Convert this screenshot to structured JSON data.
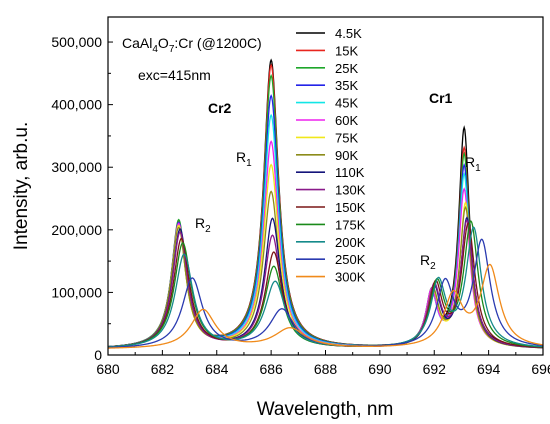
{
  "chart_data": {
    "type": "line",
    "xlabel": "Wavelength, nm",
    "ylabel": "Intensity, arb.u.",
    "xlim": [
      680,
      696
    ],
    "ylim": [
      0,
      540000
    ],
    "x_ticks": [
      680,
      682,
      684,
      686,
      688,
      690,
      692,
      694,
      696
    ],
    "x_tick_labels": [
      "680",
      "682",
      "684",
      "686",
      "688",
      "690",
      "692",
      "694",
      "696"
    ],
    "y_ticks": [
      0,
      100000,
      200000,
      300000,
      400000,
      500000
    ],
    "y_tick_labels": [
      "0",
      "100,000",
      "200,000",
      "300,000",
      "400,000",
      "500,000"
    ],
    "grid": false,
    "legend_position": "top-center",
    "baseline": 9000,
    "series": [
      {
        "name": "4.5K",
        "color": "#000000",
        "peaks": [
          [
            682.6,
            195000,
            0.32
          ],
          [
            686.0,
            460000,
            0.33
          ],
          [
            691.9,
            80000,
            0.25
          ],
          [
            693.1,
            350000,
            0.24
          ]
        ]
      },
      {
        "name": "15K",
        "color": "#e8251e",
        "peaks": [
          [
            682.6,
            200000,
            0.32
          ],
          [
            686.0,
            452000,
            0.33
          ],
          [
            691.9,
            82000,
            0.25
          ],
          [
            693.1,
            318000,
            0.24
          ]
        ]
      },
      {
        "name": "25K",
        "color": "#1ea62a",
        "peaks": [
          [
            682.6,
            203000,
            0.32
          ],
          [
            686.0,
            435000,
            0.33
          ],
          [
            691.9,
            85000,
            0.25
          ],
          [
            693.1,
            308000,
            0.24
          ]
        ]
      },
      {
        "name": "35K",
        "color": "#2323e8",
        "peaks": [
          [
            682.6,
            199000,
            0.32
          ],
          [
            686.0,
            403000,
            0.33
          ],
          [
            691.9,
            84000,
            0.25
          ],
          [
            693.1,
            290000,
            0.24
          ]
        ]
      },
      {
        "name": "45K",
        "color": "#12e6e6",
        "peaks": [
          [
            682.6,
            196000,
            0.32
          ],
          [
            686.0,
            372000,
            0.33
          ],
          [
            691.9,
            83000,
            0.25
          ],
          [
            693.1,
            276000,
            0.24
          ]
        ]
      },
      {
        "name": "60K",
        "color": "#ee22ee",
        "peaks": [
          [
            682.6,
            198000,
            0.32
          ],
          [
            686.0,
            330000,
            0.33
          ],
          [
            691.9,
            86000,
            0.25
          ],
          [
            693.1,
            252000,
            0.25
          ]
        ]
      },
      {
        "name": "75K",
        "color": "#f0e81a",
        "peaks": [
          [
            682.6,
            195000,
            0.32
          ],
          [
            686.0,
            293000,
            0.34
          ],
          [
            691.95,
            86000,
            0.26
          ],
          [
            693.15,
            230000,
            0.25
          ]
        ]
      },
      {
        "name": "90K",
        "color": "#8c8c1a",
        "peaks": [
          [
            682.6,
            192000,
            0.33
          ],
          [
            686.0,
            250000,
            0.34
          ],
          [
            691.95,
            88000,
            0.27
          ],
          [
            693.15,
            222000,
            0.26
          ]
        ]
      },
      {
        "name": "110K",
        "color": "#14147a",
        "peaks": [
          [
            682.65,
            190000,
            0.34
          ],
          [
            686.05,
            207000,
            0.35
          ],
          [
            692.0,
            92000,
            0.28
          ],
          [
            693.2,
            205000,
            0.27
          ]
        ]
      },
      {
        "name": "130K",
        "color": "#8a1a8a",
        "peaks": [
          [
            682.65,
            185000,
            0.34
          ],
          [
            686.05,
            180000,
            0.36
          ],
          [
            692.0,
            95000,
            0.29
          ],
          [
            693.2,
            200000,
            0.28
          ]
        ]
      },
      {
        "name": "150K",
        "color": "#7a1616",
        "peaks": [
          [
            682.7,
            175000,
            0.36
          ],
          [
            686.1,
            153000,
            0.38
          ],
          [
            692.05,
            98000,
            0.3
          ],
          [
            693.25,
            195000,
            0.3
          ]
        ]
      },
      {
        "name": "175K",
        "color": "#1a8a1a",
        "peaks": [
          [
            682.75,
            168000,
            0.38
          ],
          [
            686.1,
            130000,
            0.4
          ],
          [
            692.1,
            100000,
            0.32
          ],
          [
            693.35,
            198000,
            0.32
          ]
        ]
      },
      {
        "name": "200K",
        "color": "#158a8a",
        "peaks": [
          [
            682.8,
            150000,
            0.4
          ],
          [
            686.15,
            106000,
            0.45
          ],
          [
            692.15,
            102000,
            0.34
          ],
          [
            693.45,
            188000,
            0.34
          ]
        ]
      },
      {
        "name": "250K",
        "color": "#2a3ab0",
        "peaks": [
          [
            683.1,
            112000,
            0.45
          ],
          [
            686.4,
            62000,
            0.55
          ],
          [
            692.4,
            100000,
            0.38
          ],
          [
            693.75,
            168000,
            0.38
          ]
        ]
      },
      {
        "name": "300K",
        "color": "#f08a1a",
        "peaks": [
          [
            683.5,
            62000,
            0.55
          ],
          [
            686.7,
            32000,
            0.7
          ],
          [
            692.7,
            82000,
            0.42
          ],
          [
            694.05,
            128000,
            0.42
          ]
        ]
      }
    ]
  },
  "annotations": {
    "sample": "CaAl",
    "sample_sub4": "4",
    "sample_mid": "O",
    "sample_sub7": "7",
    "sample_rest": ":Cr (@1200C)",
    "excitation": "exc=415nm",
    "cr2": "Cr2",
    "cr1": "Cr1",
    "r_letter": "R",
    "sub1": "1",
    "sub2": "2"
  }
}
